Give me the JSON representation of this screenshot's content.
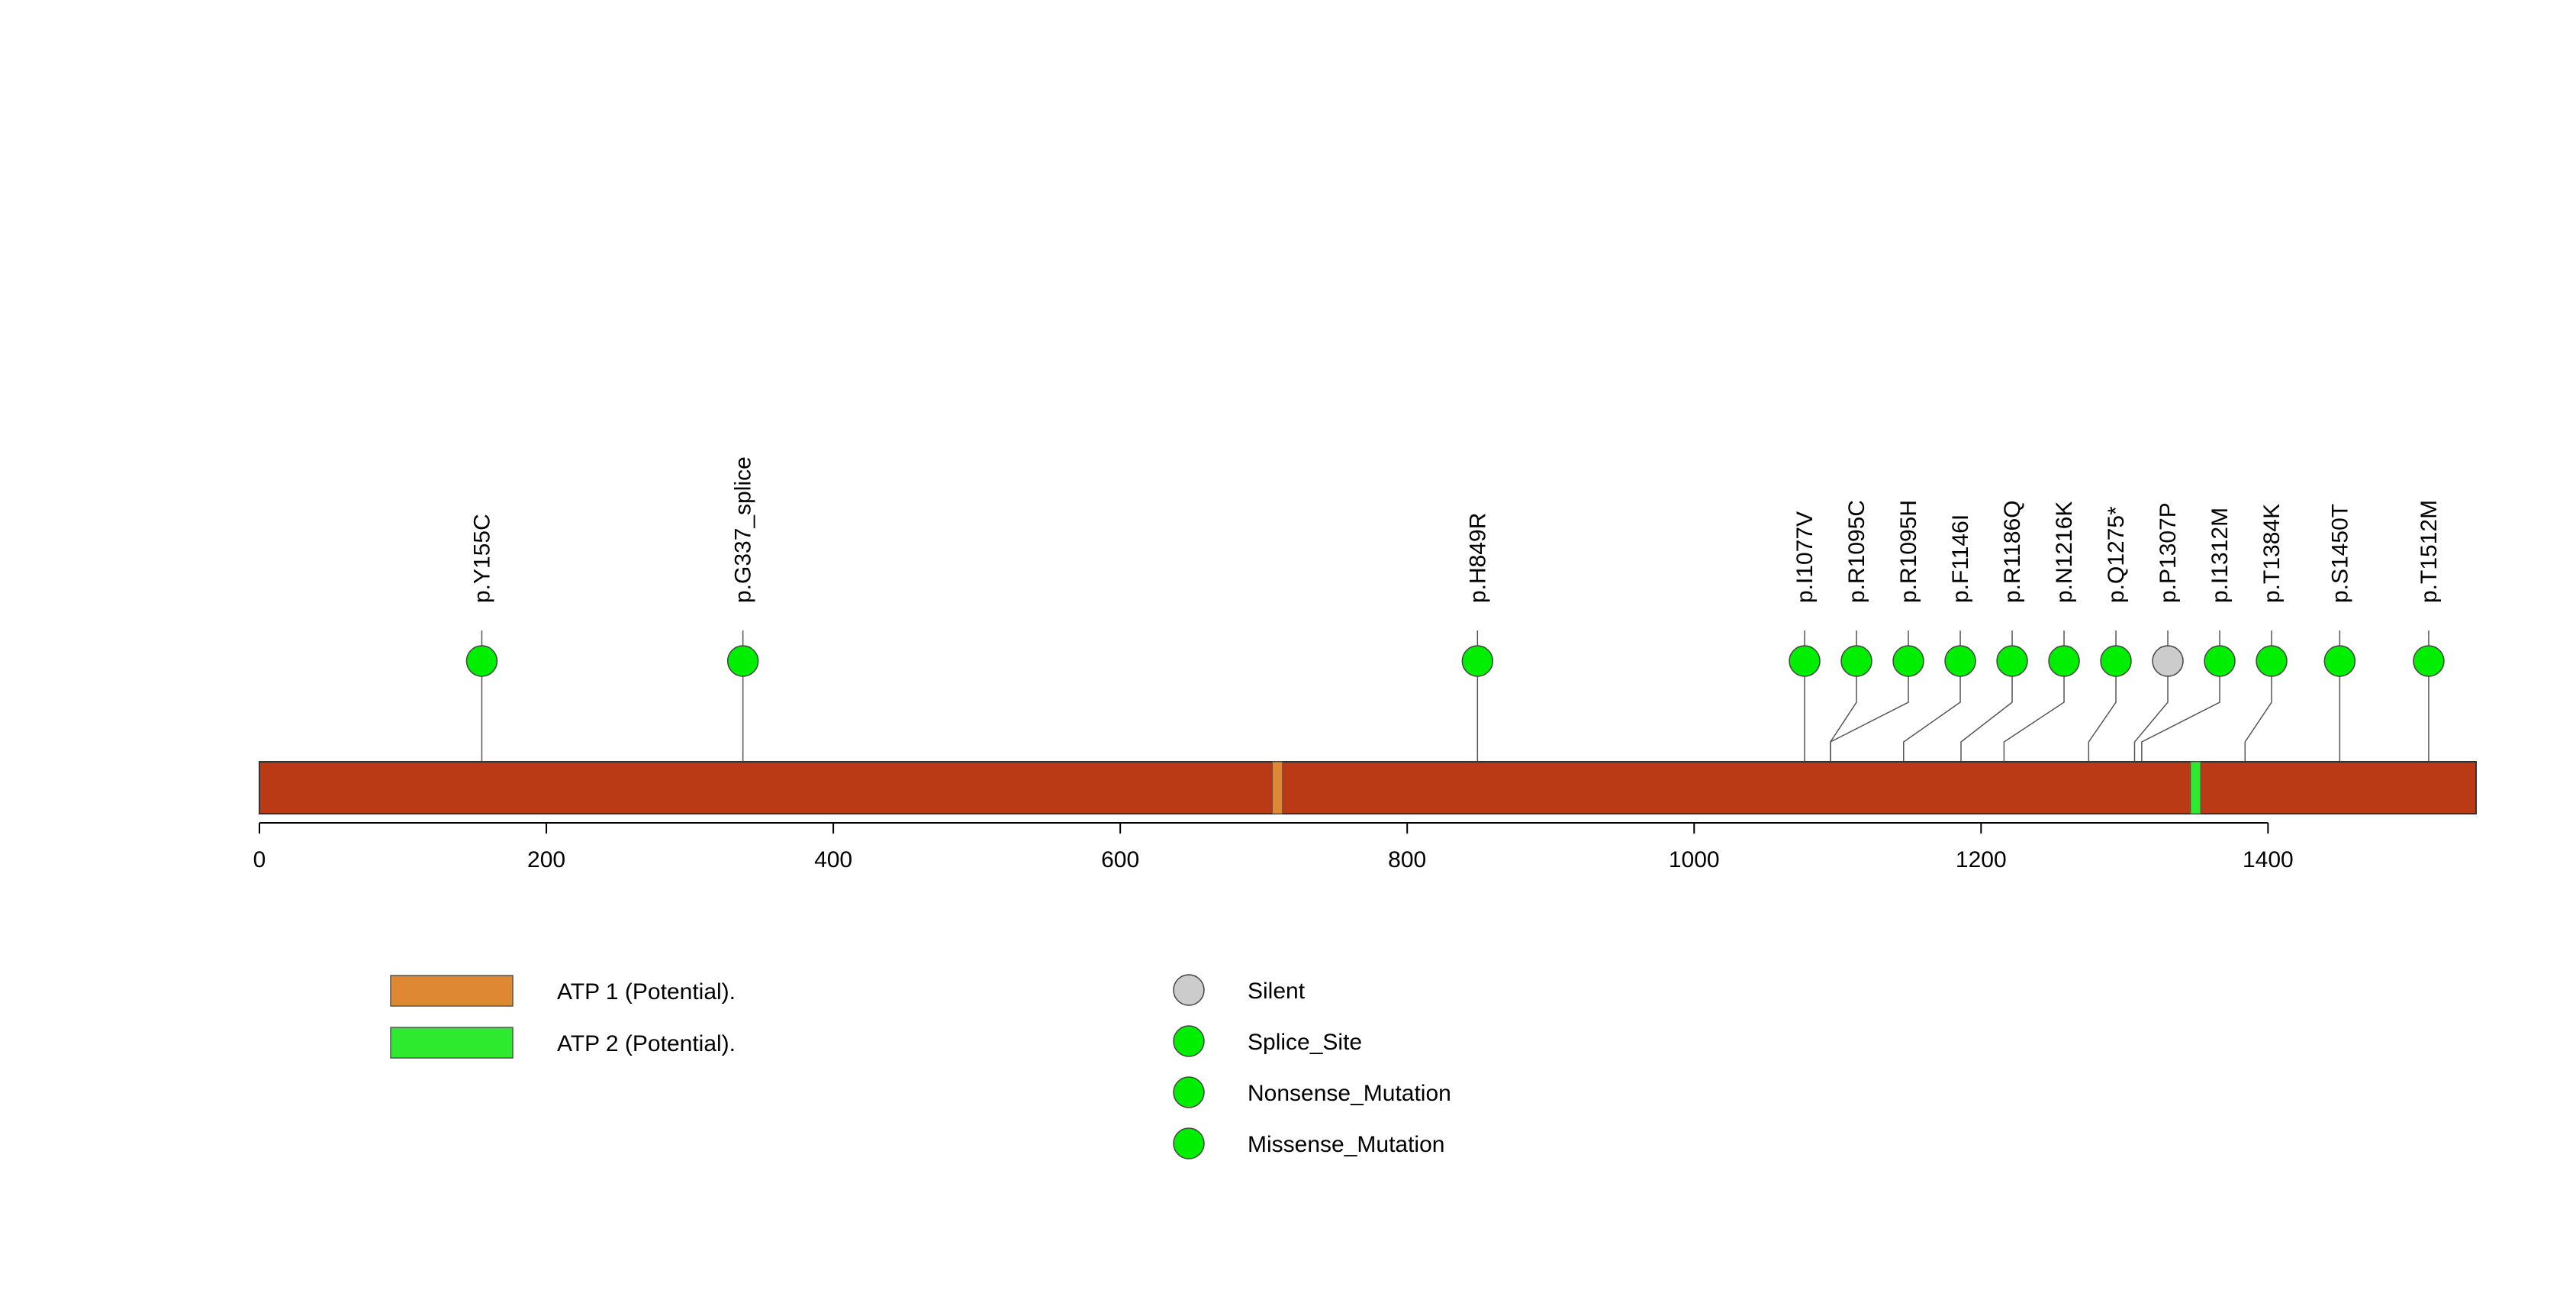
{
  "protein": {
    "length": 1545,
    "axis_ticks": [
      0,
      200,
      400,
      600,
      800,
      1000,
      1200,
      1400
    ],
    "bar_color": "#bb3a16"
  },
  "domains": [
    {
      "label": "ATP 1 (Potential).",
      "start": 706,
      "end": 713,
      "color": "#df8833"
    },
    {
      "label": "ATP 2 (Potential).",
      "start": 1346,
      "end": 1353,
      "color": "#2eea2e"
    }
  ],
  "mutations": [
    {
      "label": "p.Y155C",
      "position": 155,
      "type": "Missense_Mutation"
    },
    {
      "label": "p.G337_splice",
      "position": 337,
      "type": "Splice_Site"
    },
    {
      "label": "p.H849R",
      "position": 849,
      "type": "Missense_Mutation"
    },
    {
      "label": "p.I1077V",
      "position": 1077,
      "type": "Missense_Mutation"
    },
    {
      "label": "p.R1095C",
      "position": 1095,
      "type": "Missense_Mutation"
    },
    {
      "label": "p.R1095H",
      "position": 1095,
      "type": "Missense_Mutation"
    },
    {
      "label": "p.F1146I",
      "position": 1146,
      "type": "Missense_Mutation"
    },
    {
      "label": "p.R1186Q",
      "position": 1186,
      "type": "Missense_Mutation"
    },
    {
      "label": "p.N1216K",
      "position": 1216,
      "type": "Missense_Mutation"
    },
    {
      "label": "p.Q1275*",
      "position": 1275,
      "type": "Nonsense_Mutation"
    },
    {
      "label": "p.P1307P",
      "position": 1307,
      "type": "Silent"
    },
    {
      "label": "p.I1312M",
      "position": 1312,
      "type": "Missense_Mutation"
    },
    {
      "label": "p.T1384K",
      "position": 1384,
      "type": "Missense_Mutation"
    },
    {
      "label": "p.S1450T",
      "position": 1450,
      "type": "Missense_Mutation"
    },
    {
      "label": "p.T1512M",
      "position": 1512,
      "type": "Missense_Mutation"
    }
  ],
  "mutation_legend": [
    {
      "label": "Silent",
      "color": "#cccccc"
    },
    {
      "label": "Splice_Site",
      "color": "#00ee00"
    },
    {
      "label": "Nonsense_Mutation",
      "color": "#00ee00"
    },
    {
      "label": "Missense_Mutation",
      "color": "#00ee00"
    }
  ],
  "colors": {
    "Silent": "#cccccc",
    "Splice_Site": "#00ee00",
    "Nonsense_Mutation": "#00ee00",
    "Missense_Mutation": "#00ee00"
  }
}
